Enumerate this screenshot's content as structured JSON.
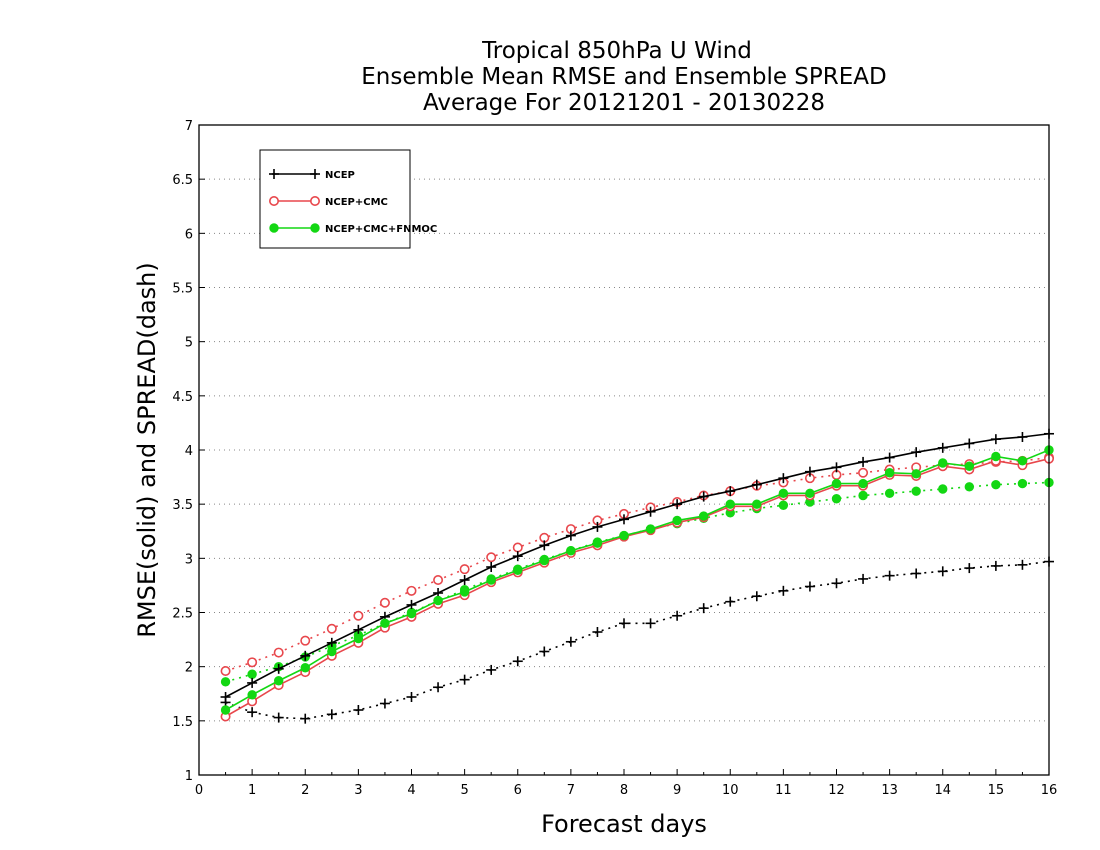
{
  "chart_data": {
    "type": "line",
    "title_lines": [
      "Tropical 850hPa U Wind",
      "Ensemble Mean RMSE and Ensemble SPREAD",
      "Average For 20121201 - 20130228"
    ],
    "xlabel": "Forecast days",
    "ylabel": "RMSE(solid) and SPREAD(dash)",
    "xlim": [
      0,
      16
    ],
    "ylim": [
      1,
      7
    ],
    "x_ticks": [
      "0",
      "1",
      "2",
      "3",
      "4",
      "5",
      "6",
      "7",
      "8",
      "9",
      "10",
      "11",
      "12",
      "13",
      "14",
      "15",
      "16"
    ],
    "y_ticks": [
      "1",
      "1.5",
      "2",
      "2.5",
      "3",
      "3.5",
      "4",
      "4.5",
      "5",
      "5.5",
      "6",
      "6.5",
      "7"
    ],
    "grid": "horizontal dotted",
    "legend_position": "top-left",
    "x": [
      0.5,
      1,
      1.5,
      2,
      2.5,
      3,
      3.5,
      4,
      4.5,
      5,
      5.5,
      6,
      6.5,
      7,
      7.5,
      8,
      8.5,
      9,
      9.5,
      10,
      10.5,
      11,
      11.5,
      12,
      12.5,
      13,
      13.5,
      14,
      14.5,
      15,
      15.5,
      16
    ],
    "series": [
      {
        "name": "NCEP",
        "color": "#000000",
        "marker": "plus",
        "rmse": [
          1.72,
          1.85,
          1.98,
          2.1,
          2.22,
          2.34,
          2.46,
          2.57,
          2.68,
          2.8,
          2.92,
          3.02,
          3.12,
          3.21,
          3.29,
          3.36,
          3.43,
          3.5,
          3.57,
          3.62,
          3.68,
          3.74,
          3.8,
          3.84,
          3.89,
          3.93,
          3.98,
          4.02,
          4.06,
          4.1,
          4.12,
          4.15
        ],
        "spread": [
          1.67,
          1.58,
          1.53,
          1.52,
          1.56,
          1.6,
          1.66,
          1.72,
          1.81,
          1.88,
          1.97,
          2.05,
          2.14,
          2.23,
          2.32,
          2.4,
          2.4,
          2.47,
          2.54,
          2.6,
          2.65,
          2.7,
          2.74,
          2.77,
          2.81,
          2.84,
          2.86,
          2.88,
          2.91,
          2.93,
          2.94,
          2.97
        ]
      },
      {
        "name": "NCEP+CMC",
        "color": "#e8474c",
        "marker": "open-circle",
        "rmse": [
          1.54,
          1.68,
          1.83,
          1.95,
          2.1,
          2.22,
          2.36,
          2.46,
          2.58,
          2.66,
          2.78,
          2.87,
          2.96,
          3.05,
          3.12,
          3.2,
          3.26,
          3.33,
          3.38,
          3.48,
          3.48,
          3.58,
          3.58,
          3.67,
          3.67,
          3.77,
          3.76,
          3.85,
          3.82,
          3.9,
          3.86,
          3.92
        ],
        "spread": [
          1.96,
          2.04,
          2.13,
          2.24,
          2.35,
          2.47,
          2.59,
          2.7,
          2.8,
          2.9,
          3.01,
          3.1,
          3.19,
          3.27,
          3.35,
          3.41,
          3.47,
          3.52,
          3.58,
          3.62,
          3.67,
          3.7,
          3.74,
          3.77,
          3.79,
          3.82,
          3.84,
          3.86,
          3.87,
          3.89,
          3.9,
          3.93
        ]
      },
      {
        "name": "NCEP+CMC+FNMOC",
        "color": "#13d713",
        "marker": "filled-circle",
        "rmse": [
          1.6,
          1.74,
          1.87,
          1.99,
          2.14,
          2.26,
          2.4,
          2.49,
          2.61,
          2.69,
          2.8,
          2.89,
          2.98,
          3.07,
          3.14,
          3.21,
          3.27,
          3.35,
          3.39,
          3.5,
          3.5,
          3.6,
          3.6,
          3.69,
          3.69,
          3.79,
          3.78,
          3.88,
          3.85,
          3.94,
          3.9,
          4.0
        ],
        "spread": [
          1.86,
          1.93,
          2.0,
          2.09,
          2.19,
          2.29,
          2.4,
          2.5,
          2.61,
          2.71,
          2.81,
          2.9,
          2.99,
          3.07,
          3.15,
          3.21,
          3.27,
          3.32,
          3.37,
          3.42,
          3.46,
          3.49,
          3.52,
          3.55,
          3.58,
          3.6,
          3.62,
          3.64,
          3.66,
          3.68,
          3.69,
          3.7
        ]
      }
    ]
  }
}
